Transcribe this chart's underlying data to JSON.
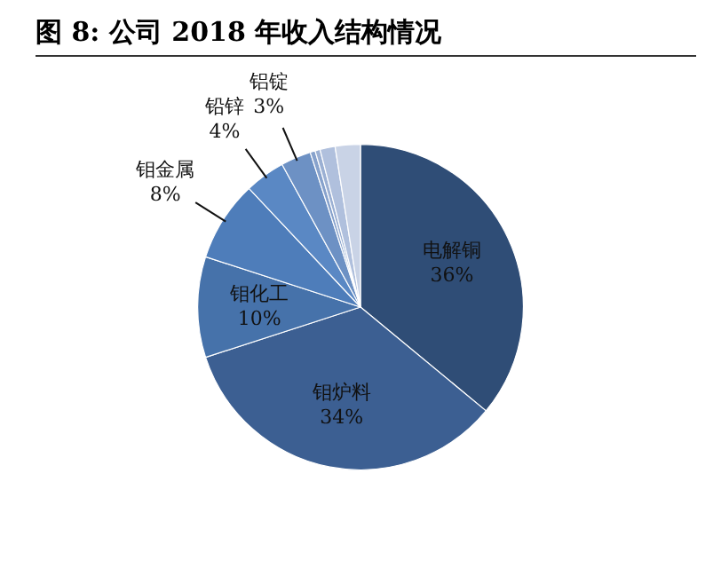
{
  "chart_data": {
    "type": "pie",
    "title": "图 8: 公司 2018 年收入结构情况",
    "categories": [
      "电解铜",
      "钼炉料",
      "钼化工",
      "钼金属",
      "铅锌",
      "铝锭",
      null,
      null,
      null,
      null
    ],
    "values": [
      36,
      34,
      10,
      8,
      4,
      3,
      0.5,
      0.5,
      1.5,
      2.5
    ],
    "value_labels": [
      "36%",
      "34%",
      "10%",
      "8%",
      "4%",
      "3%",
      null,
      null,
      null,
      null
    ],
    "colors": [
      "#2f4d76",
      "#3c5f92",
      "#4672aa",
      "#4e7dba",
      "#5a88c4",
      "#6d91c4",
      "#87a2cc",
      "#9bb0d3",
      "#b0c0dd",
      "#c9d3e6"
    ],
    "legend": false
  }
}
